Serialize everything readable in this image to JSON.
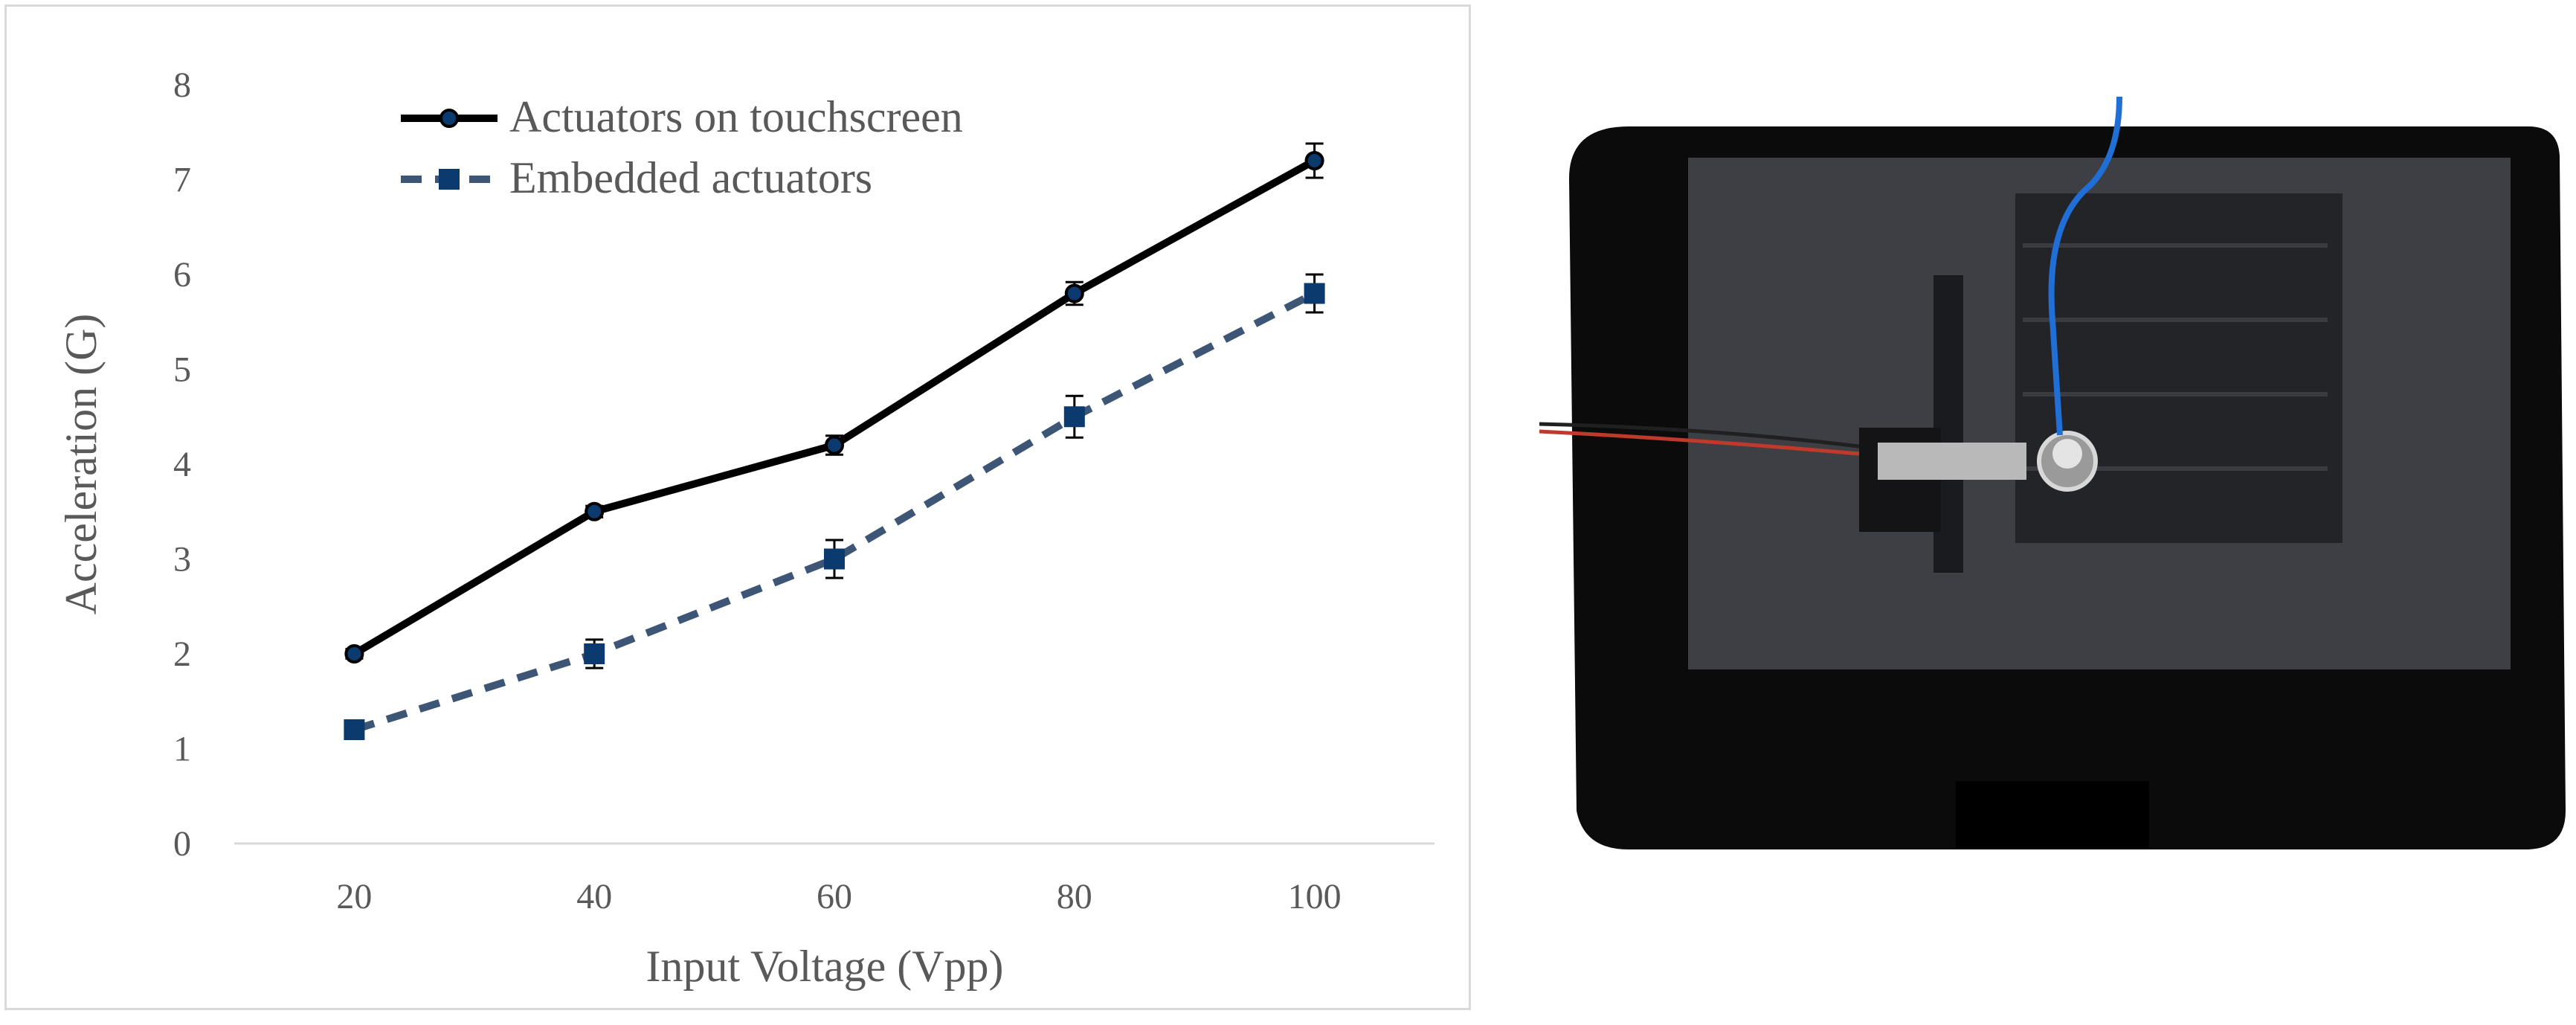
{
  "chart_data": {
    "type": "line",
    "categories": [
      "20",
      "40",
      "60",
      "80",
      "100"
    ],
    "x": [
      20,
      40,
      60,
      80,
      100
    ],
    "xlabel": "Input Voltage (Vpp)",
    "ylabel": "Acceleration (G)",
    "ylim": [
      0,
      8
    ],
    "yticks": [
      "0",
      "1",
      "2",
      "3",
      "4",
      "5",
      "6",
      "7",
      "8"
    ],
    "grid": false,
    "legend_position": "top-left",
    "series": [
      {
        "name": "Actuators on touchscreen",
        "values": [
          2.0,
          3.5,
          4.2,
          5.8,
          7.2
        ],
        "errors": [
          0.05,
          0.06,
          0.1,
          0.12,
          0.18
        ],
        "color": "#000000",
        "line_style": "solid",
        "marker": "circle"
      },
      {
        "name": "Embedded actuators",
        "values": [
          1.2,
          2.0,
          3.0,
          4.5,
          5.8
        ],
        "errors": [
          0.07,
          0.15,
          0.2,
          0.22,
          0.2
        ],
        "color": "#0b3b6e",
        "line_style": "dashed",
        "marker": "square"
      }
    ]
  },
  "colors": {
    "axis_text": "#595959",
    "axis_line": "#d9d9d9",
    "tablet_body": "#0b0b0b",
    "screen": "#2e2f33",
    "sensor_cable": "#1f6fd6",
    "wire_red": "#c0392b"
  }
}
